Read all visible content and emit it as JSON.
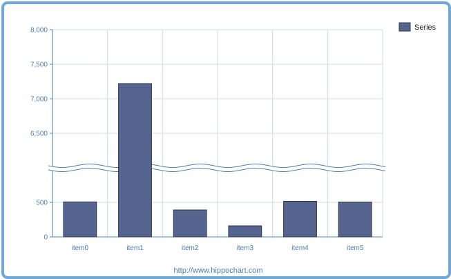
{
  "chart_data": {
    "type": "bar",
    "categories": [
      "item0",
      "item1",
      "item2",
      "item3",
      "item4",
      "item5"
    ],
    "series": [
      {
        "name": "Series",
        "values": [
          540,
          7220,
          390,
          160,
          590,
          530
        ],
        "color": "#55658f"
      }
    ],
    "axis_break": {
      "lower_segment": [
        0,
        500
      ],
      "upper_segment": [
        6500,
        8000
      ]
    },
    "y_ticks": [
      "0",
      "500",
      "6,500",
      "7,000",
      "7,500",
      "8,000"
    ],
    "grid": true,
    "legend_position": "top-right"
  },
  "colors": {
    "frame_border": "#6fa8d9",
    "grid": "#c8dcea",
    "bar_fill": "#55658f",
    "bar_stroke": "#2b3550",
    "axis_text": "#4a7fb5"
  },
  "footer": {
    "url": "http://www.hippochart.com"
  }
}
